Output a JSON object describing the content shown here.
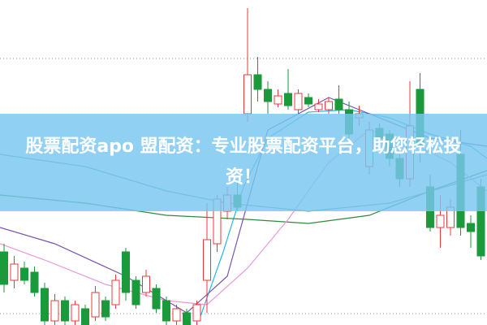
{
  "chart_data": {
    "type": "candlestick",
    "title": "股票配资apo 盟配资：专业股票配资平台，助您轻松投资！",
    "xlim": [
      -0.4,
      47.6
    ],
    "ylim": [
      0,
      400
    ],
    "up_color": "#e8383d",
    "down_color": "#1a9a3a",
    "candles": [
      {
        "open": 90,
        "high": 100,
        "low": 40,
        "close": 50
      },
      {
        "open": 55,
        "high": 85,
        "low": 45,
        "close": 75
      },
      {
        "open": 70,
        "high": 78,
        "low": 50,
        "close": 55
      },
      {
        "open": 65,
        "high": 72,
        "low": 35,
        "close": 40
      },
      {
        "open": 45,
        "high": 52,
        "low": 0,
        "close": 5
      },
      {
        "open": 5,
        "high": 38,
        "low": 0,
        "close": 30
      },
      {
        "open": 30,
        "high": 35,
        "low": 0,
        "close": 5
      },
      {
        "open": 5,
        "high": 30,
        "low": 0,
        "close": 25
      },
      {
        "open": 20,
        "high": 25,
        "low": 0,
        "close": 0
      },
      {
        "open": 10,
        "high": 48,
        "low": 5,
        "close": 40
      },
      {
        "open": 30,
        "high": 35,
        "low": 5,
        "close": 10
      },
      {
        "open": 25,
        "high": 62,
        "low": 20,
        "close": 55
      },
      {
        "open": 90,
        "high": 95,
        "low": 30,
        "close": 40
      },
      {
        "open": 55,
        "high": 60,
        "low": 20,
        "close": 25
      },
      {
        "open": 40,
        "high": 68,
        "low": 35,
        "close": 60
      },
      {
        "open": 45,
        "high": 50,
        "low": 15,
        "close": 20
      },
      {
        "open": 30,
        "high": 35,
        "low": 0,
        "close": 5
      },
      {
        "open": 5,
        "high": 25,
        "low": 0,
        "close": 20
      },
      {
        "open": 15,
        "high": 20,
        "low": 0,
        "close": 0
      },
      {
        "open": 5,
        "high": 30,
        "low": 0,
        "close": 25
      },
      {
        "open": 55,
        "high": 150,
        "low": 15,
        "close": 105
      },
      {
        "open": 100,
        "high": 160,
        "low": 90,
        "close": 155
      },
      {
        "open": 140,
        "high": 170,
        "low": 130,
        "close": 160
      },
      {
        "open": 160,
        "high": 175,
        "low": 140,
        "close": 145
      },
      {
        "open": 260,
        "high": 390,
        "low": 250,
        "close": 308
      },
      {
        "open": 308,
        "high": 330,
        "low": 275,
        "close": 290
      },
      {
        "open": 290,
        "high": 300,
        "low": 260,
        "close": 275
      },
      {
        "open": 272,
        "high": 290,
        "low": 268,
        "close": 282
      },
      {
        "open": 285,
        "high": 315,
        "low": 265,
        "close": 270
      },
      {
        "open": 265,
        "high": 290,
        "low": 260,
        "close": 285
      },
      {
        "open": 280,
        "high": 285,
        "low": 268,
        "close": 272
      },
      {
        "open": 265,
        "high": 278,
        "low": 262,
        "close": 272
      },
      {
        "open": 265,
        "high": 280,
        "low": 260,
        "close": 275
      },
      {
        "open": 278,
        "high": 295,
        "low": 260,
        "close": 265
      },
      {
        "open": 265,
        "high": 275,
        "low": 225,
        "close": 235
      },
      {
        "open": 255,
        "high": 270,
        "low": 245,
        "close": 260
      },
      {
        "open": 195,
        "high": 250,
        "low": 185,
        "close": 240
      },
      {
        "open": 242,
        "high": 248,
        "low": 222,
        "close": 230
      },
      {
        "open": 235,
        "high": 240,
        "low": 195,
        "close": 205
      },
      {
        "open": 205,
        "high": 210,
        "low": 170,
        "close": 180
      },
      {
        "open": 180,
        "high": 300,
        "low": 170,
        "close": 245
      },
      {
        "open": 290,
        "high": 310,
        "low": 200,
        "close": 220
      },
      {
        "open": 170,
        "high": 185,
        "low": 115,
        "close": 120
      },
      {
        "open": 120,
        "high": 160,
        "low": 95,
        "close": 135
      },
      {
        "open": 120,
        "high": 155,
        "low": 110,
        "close": 145
      },
      {
        "open": 210,
        "high": 240,
        "low": 110,
        "close": 120
      },
      {
        "open": 125,
        "high": 135,
        "low": 95,
        "close": 115
      },
      {
        "open": 170,
        "high": 180,
        "low": 80,
        "close": 85
      }
    ],
    "lines": [
      {
        "color": "#29b6d9",
        "x": [
          19.2,
          21.6,
          23.6,
          26,
          30,
          34,
          38,
          42,
          46,
          47.6
        ],
        "values": [
          5,
          90,
          170,
          230,
          262,
          265,
          255,
          235,
          220,
          205
        ]
      },
      {
        "color": "#2e8b3e",
        "x": [
          -0.4,
          8,
          16,
          24,
          30,
          36,
          42,
          47.6
        ],
        "values": [
          160,
          150,
          135,
          130,
          125,
          135,
          165,
          190
        ]
      },
      {
        "color": "#e89ad8",
        "x": [
          -0.4,
          4,
          10,
          16,
          20,
          24,
          28,
          32,
          36,
          40,
          44,
          47.6
        ],
        "values": [
          100,
          80,
          50,
          30,
          25,
          70,
          130,
          200,
          240,
          225,
          200,
          165
        ]
      },
      {
        "color": "#7a55b0",
        "x": [
          -0.4,
          5,
          12,
          18,
          22,
          26,
          32,
          36,
          42,
          47.6
        ],
        "values": [
          120,
          100,
          60,
          15,
          60,
          240,
          280,
          260,
          230,
          220
        ]
      },
      {
        "color": "#5aa5a5",
        "x": [
          -0.4,
          8,
          16,
          22,
          30,
          38,
          47.6
        ],
        "values": [
          210,
          195,
          165,
          150,
          140,
          150,
          185
        ]
      }
    ]
  }
}
